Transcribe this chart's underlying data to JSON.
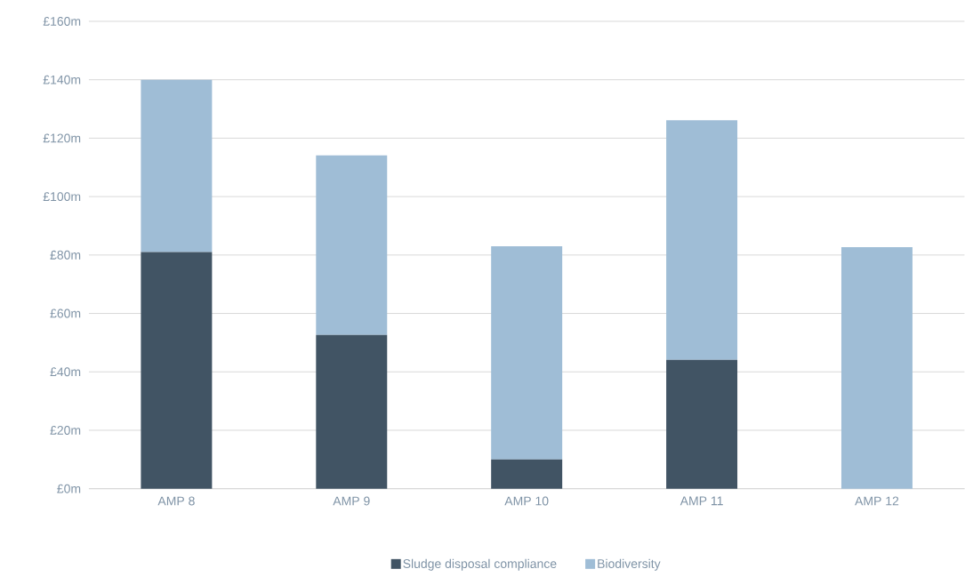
{
  "chart_data": {
    "type": "bar",
    "stacked": true,
    "categories": [
      "AMP 8",
      "AMP 9",
      "AMP 10",
      "AMP 11",
      "AMP 12"
    ],
    "series": [
      {
        "name": "Sludge disposal compliance",
        "color": "#415464",
        "values": [
          81,
          52.6,
          10,
          44.1,
          0
        ]
      },
      {
        "name": "Biodiversity",
        "color": "#9fbdd6",
        "values": [
          59,
          61.5,
          73,
          82,
          82.7
        ]
      }
    ],
    "ylim": [
      0,
      160
    ],
    "yticks": [
      {
        "value": 0,
        "label": "£0m"
      },
      {
        "value": 20,
        "label": "£20m"
      },
      {
        "value": 40,
        "label": "£40m"
      },
      {
        "value": 60,
        "label": "£60m"
      },
      {
        "value": 80,
        "label": "£80m"
      },
      {
        "value": 100,
        "label": "£100m"
      },
      {
        "value": 120,
        "label": "£120m"
      },
      {
        "value": 140,
        "label": "£140m"
      },
      {
        "value": 160,
        "label": "£160m"
      }
    ],
    "grid": "y",
    "legend": "bottom"
  }
}
